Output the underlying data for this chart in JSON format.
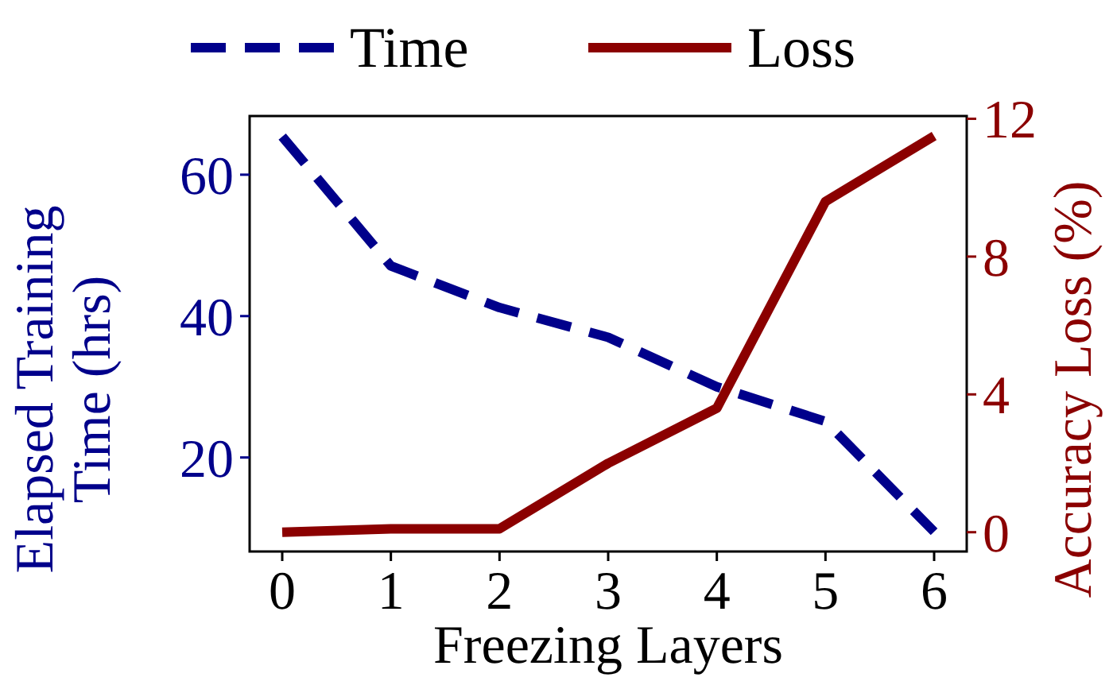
{
  "chart_data": {
    "type": "line",
    "xlabel": "Freezing Layers",
    "ylabel": "Elapsed Training\nTime (hrs)",
    "y2label": "Accuracy Loss (%)",
    "x": [
      0,
      1,
      2,
      3,
      4,
      5,
      6
    ],
    "xlim": [
      -0.3,
      6.3
    ],
    "xticks": [
      0,
      1,
      2,
      3,
      4,
      5,
      6
    ],
    "ylim": [
      6.7,
      68.3
    ],
    "yticks": [
      20,
      40,
      60
    ],
    "y2lim": [
      -0.56,
      12.08
    ],
    "y2ticks": [
      0,
      4,
      8,
      12
    ],
    "series": [
      {
        "name": "Time",
        "color": "#00008b",
        "line_style": "dashed",
        "values": [
          65.4,
          47.1,
          41.2,
          37.0,
          30.0,
          25.1,
          9.5
        ]
      },
      {
        "name": "Loss",
        "color": "#8b0000",
        "line_style": "solid",
        "axis": "y2",
        "values": [
          0,
          0.1,
          0.1,
          2.0,
          3.6,
          9.6,
          11.5
        ]
      }
    ],
    "legend": "top",
    "grid": false,
    "marker": "none"
  }
}
